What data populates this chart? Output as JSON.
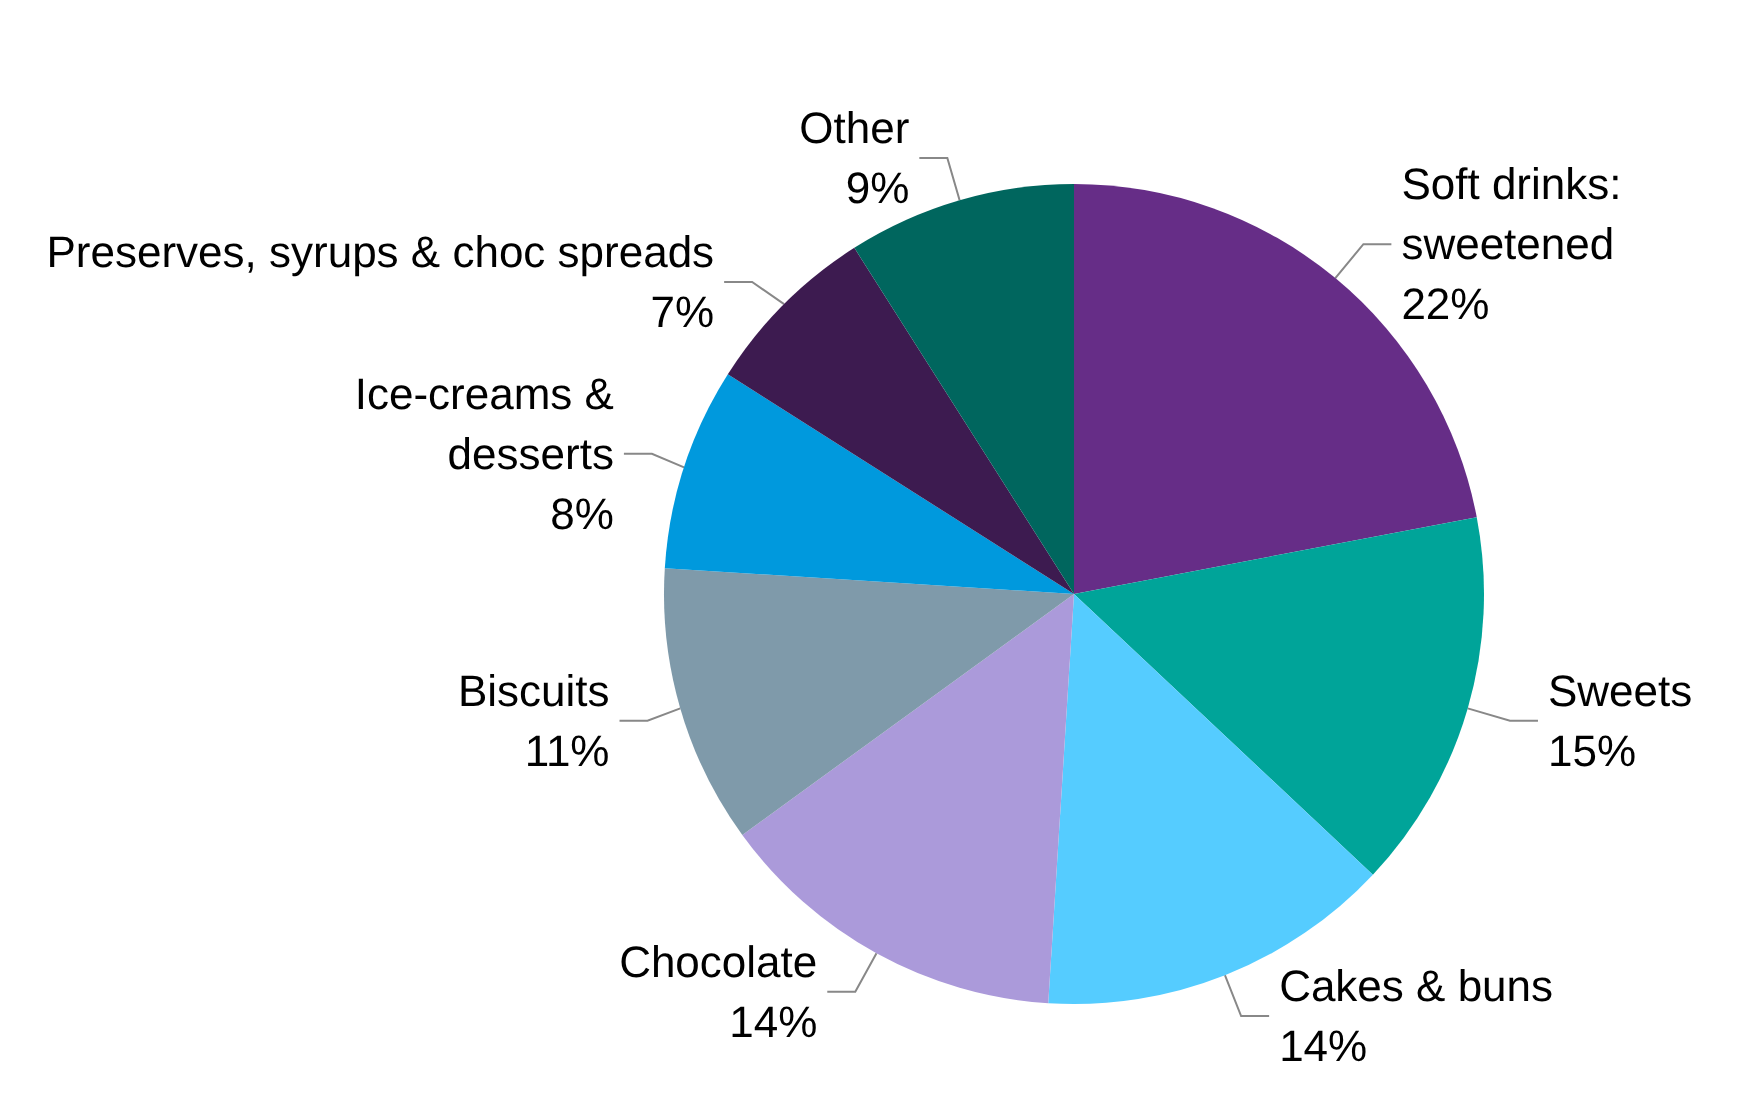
{
  "chart_data": {
    "type": "pie",
    "categories": [
      "Soft drinks:\nsweetened",
      "Sweets",
      "Cakes & buns",
      "Chocolate",
      "Biscuits",
      "Ice-creams &\ndesserts",
      "Preserves, syrups & choc spreads",
      "Other"
    ],
    "value_labels": [
      "22%",
      "15%",
      "14%",
      "14%",
      "11%",
      "8%",
      "7%",
      "9%"
    ],
    "values": [
      22,
      15,
      14,
      14,
      11,
      8,
      7,
      9
    ],
    "colors": [
      "#662d87",
      "#00a499",
      "#55ccff",
      "#ab9ada",
      "#7f9aaa",
      "#0099dd",
      "#3d1b50",
      "#00665e"
    ],
    "legend": false
  }
}
